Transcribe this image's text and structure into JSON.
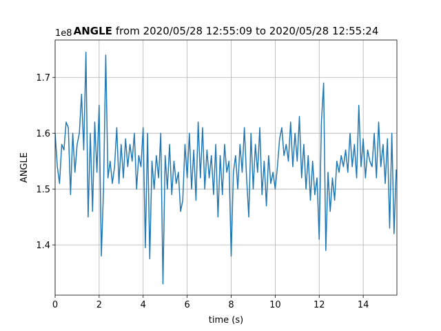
{
  "chart_data": {
    "type": "line",
    "title_bold": "ANGLE",
    "title": "from 2020/05/28 12:55:09 to 2020/05/28 12:55:24",
    "x_label": "time (s)",
    "y_label": "ANGLE",
    "y_offset_label": "1e8",
    "grid": true,
    "xlim": [
      0,
      15.53
    ],
    "ylim": [
      1.31,
      1.767
    ],
    "xticks": [
      0,
      2,
      4,
      6,
      8,
      10,
      12,
      14
    ],
    "yticks": [
      1.4,
      1.5,
      1.6,
      1.7
    ],
    "x": [
      0,
      0.1,
      0.2,
      0.3,
      0.4,
      0.5,
      0.6,
      0.7,
      0.8,
      0.9,
      1,
      1.1,
      1.2,
      1.3,
      1.4,
      1.5,
      1.6,
      1.7,
      1.8,
      1.9,
      2,
      2.1,
      2.2,
      2.3,
      2.4,
      2.5,
      2.6,
      2.7,
      2.8,
      2.9,
      3,
      3.1,
      3.2,
      3.3,
      3.4,
      3.5,
      3.6,
      3.7,
      3.8,
      3.9,
      4,
      4.1,
      4.2,
      4.3,
      4.4,
      4.5,
      4.6,
      4.7,
      4.8,
      4.9,
      5,
      5.1,
      5.2,
      5.3,
      5.4,
      5.5,
      5.6,
      5.7,
      5.8,
      5.9,
      6,
      6.1,
      6.2,
      6.3,
      6.4,
      6.5,
      6.6,
      6.7,
      6.8,
      6.9,
      7,
      7.1,
      7.2,
      7.3,
      7.4,
      7.5,
      7.6,
      7.7,
      7.8,
      7.9,
      8,
      8.1,
      8.2,
      8.3,
      8.4,
      8.5,
      8.6,
      8.7,
      8.8,
      8.9,
      9,
      9.1,
      9.2,
      9.3,
      9.4,
      9.5,
      9.6,
      9.7,
      9.8,
      9.9,
      10,
      10.1,
      10.2,
      10.3,
      10.4,
      10.5,
      10.6,
      10.7,
      10.8,
      10.9,
      11,
      11.1,
      11.2,
      11.3,
      11.4,
      11.5,
      11.6,
      11.7,
      11.8,
      11.9,
      12,
      12.1,
      12.2,
      12.3,
      12.4,
      12.5,
      12.6,
      12.7,
      12.8,
      12.9,
      13,
      13.1,
      13.2,
      13.3,
      13.4,
      13.5,
      13.6,
      13.7,
      13.8,
      13.9,
      14,
      14.1,
      14.2,
      14.3,
      14.4,
      14.5,
      14.6,
      14.7,
      14.8,
      14.9,
      15,
      15.1,
      15.2,
      15.3,
      15.4,
      15.5
    ],
    "series": [
      {
        "name": "ANGLE",
        "color": "#1f77b4",
        "values": [
          1.6,
          1.54,
          1.51,
          1.58,
          1.57,
          1.62,
          1.61,
          1.49,
          1.6,
          1.53,
          1.58,
          1.6,
          1.67,
          1.57,
          1.745,
          1.45,
          1.6,
          1.46,
          1.62,
          1.53,
          1.65,
          1.38,
          1.5,
          1.74,
          1.52,
          1.55,
          1.51,
          1.54,
          1.61,
          1.51,
          1.58,
          1.52,
          1.59,
          1.54,
          1.58,
          1.55,
          1.6,
          1.5,
          1.56,
          1.54,
          1.61,
          1.395,
          1.6,
          1.375,
          1.55,
          1.5,
          1.56,
          1.52,
          1.6,
          1.33,
          1.56,
          1.5,
          1.58,
          1.49,
          1.55,
          1.51,
          1.53,
          1.46,
          1.48,
          1.58,
          1.52,
          1.6,
          1.5,
          1.57,
          1.48,
          1.62,
          1.52,
          1.61,
          1.5,
          1.57,
          1.52,
          1.56,
          1.49,
          1.58,
          1.45,
          1.56,
          1.49,
          1.58,
          1.53,
          1.55,
          1.38,
          1.53,
          1.56,
          1.5,
          1.58,
          1.53,
          1.61,
          1.52,
          1.45,
          1.6,
          1.5,
          1.58,
          1.53,
          1.61,
          1.49,
          1.55,
          1.47,
          1.56,
          1.51,
          1.53,
          1.5,
          1.54,
          1.59,
          1.61,
          1.56,
          1.58,
          1.55,
          1.62,
          1.54,
          1.6,
          1.55,
          1.63,
          1.52,
          1.58,
          1.5,
          1.56,
          1.48,
          1.55,
          1.49,
          1.52,
          1.41,
          1.62,
          1.69,
          1.39,
          1.53,
          1.46,
          1.52,
          1.48,
          1.55,
          1.53,
          1.56,
          1.54,
          1.57,
          1.53,
          1.6,
          1.54,
          1.58,
          1.52,
          1.65,
          1.54,
          1.59,
          1.52,
          1.57,
          1.55,
          1.54,
          1.6,
          1.52,
          1.62,
          1.54,
          1.58,
          1.51,
          1.59,
          1.43,
          1.6,
          1.42,
          1.535
        ]
      }
    ]
  }
}
